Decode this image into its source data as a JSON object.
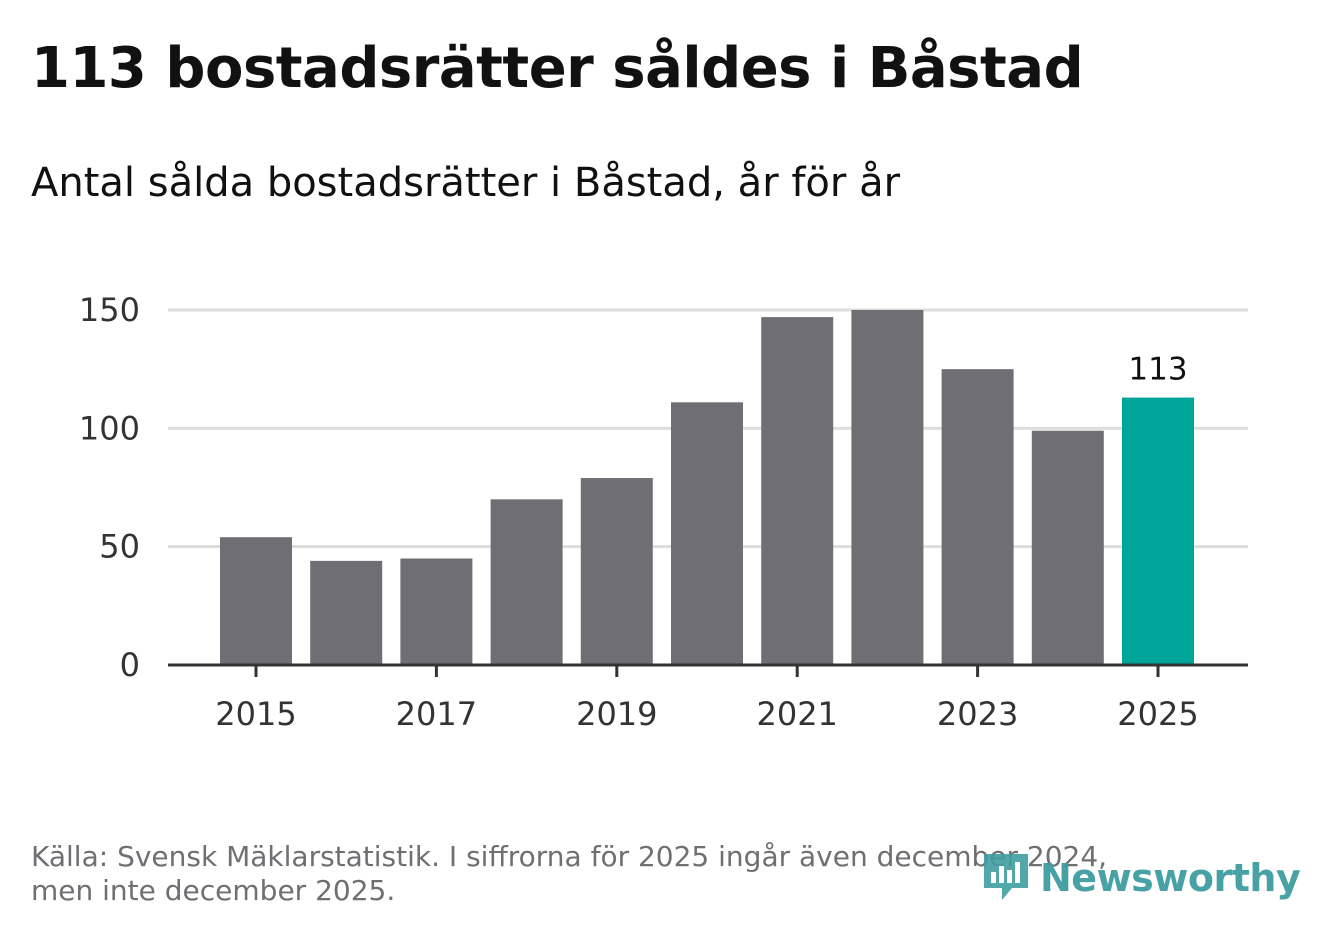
{
  "header": {
    "title": "113 bostadsrätter såldes i Båstad",
    "subtitle": "Antal sålda bostadsrätter i Båstad, år för år"
  },
  "footer": {
    "source_line1": "Källa: Svensk Mäklarstatistik. I siffrorna för 2025 ingår även december 2024,",
    "source_line2": "men inte december 2025."
  },
  "logo": {
    "text": "Newsworthy",
    "icon": "bar-chart-speech-bubble-icon",
    "color": "#3f9da0"
  },
  "chart_data": {
    "type": "bar",
    "title": "Antal sålda bostadsrätter i Båstad, år för år",
    "xlabel": "",
    "ylabel": "",
    "categories": [
      "2015",
      "2016",
      "2017",
      "2018",
      "2019",
      "2020",
      "2021",
      "2022",
      "2023",
      "2024",
      "2025"
    ],
    "values": [
      54,
      44,
      45,
      70,
      79,
      111,
      147,
      150,
      125,
      99,
      113
    ],
    "ylim": [
      0,
      150
    ],
    "yticks": [
      0,
      50,
      100,
      150
    ],
    "xtick_labels": [
      "2015",
      "2017",
      "2019",
      "2021",
      "2023",
      "2025"
    ],
    "grid": true,
    "highlight_index": 10,
    "highlight_label": "113",
    "colors": {
      "bar": "#6f6e74",
      "highlight": "#00a59a",
      "grid": "#dddddd",
      "axis": "#333333",
      "tick_text": "#333333"
    }
  }
}
